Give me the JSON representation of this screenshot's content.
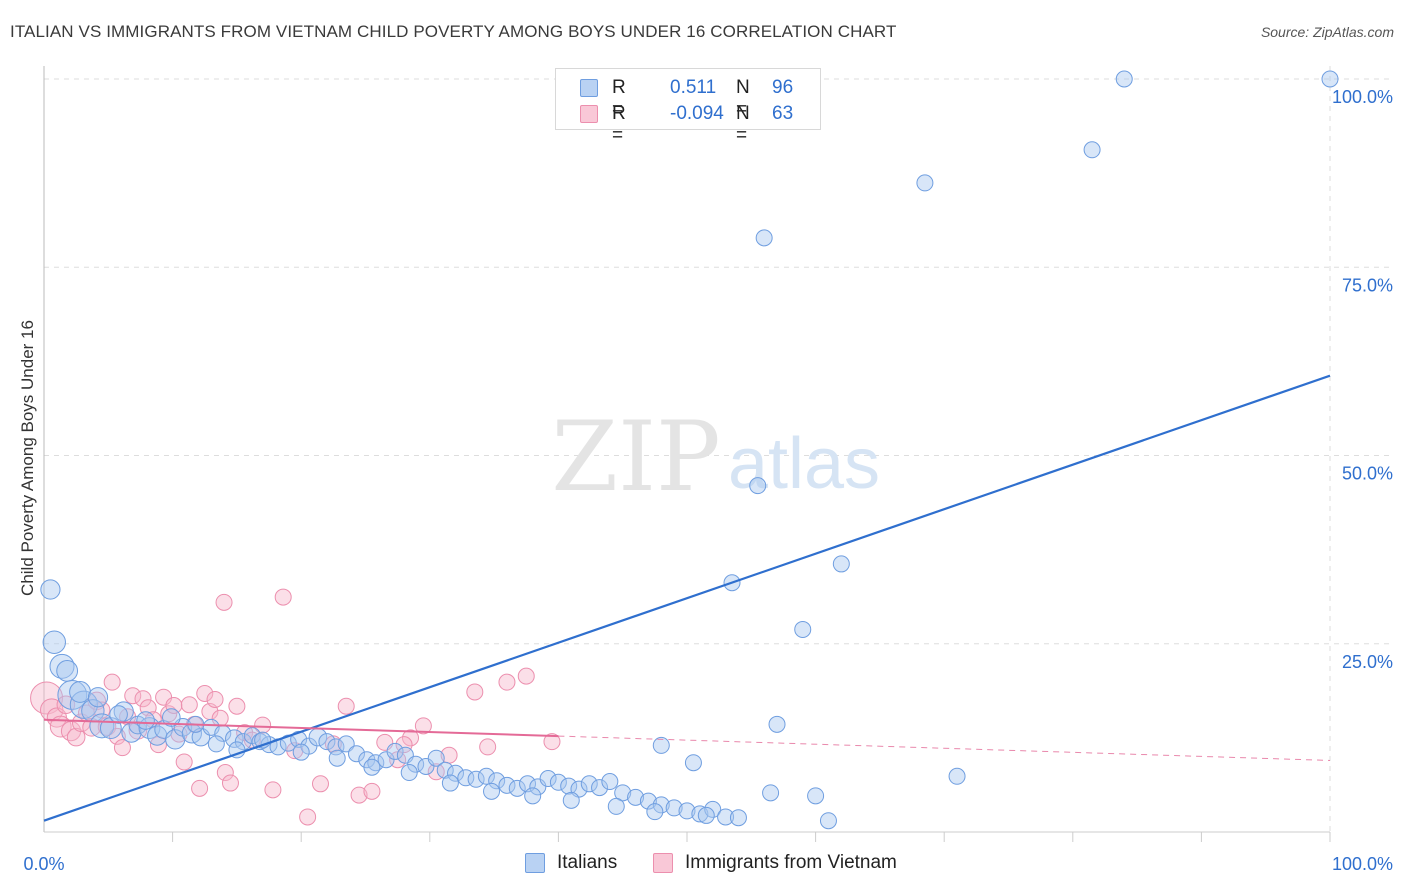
{
  "title": "ITALIAN VS IMMIGRANTS FROM VIETNAM CHILD POVERTY AMONG BOYS UNDER 16 CORRELATION CHART",
  "source": "Source: ZipAtlas.com",
  "colors": {
    "blue_fill": "#a9c7ef",
    "blue_stroke": "#6f9ee0",
    "blue_line": "#2f6fce",
    "pink_fill": "#f6b8cb",
    "pink_stroke": "#ec8fae",
    "pink_line": "#e46a97",
    "tick_text": "#2f6fce",
    "grid": "#dddddd"
  },
  "legend": {
    "rows": [
      {
        "series": "Italians",
        "r_label": "R =",
        "r_value": "0.511",
        "n_label": "N =",
        "n_value": "96"
      },
      {
        "series": "Immigrants from Vietnam",
        "r_label": "R =",
        "r_value": "-0.094",
        "n_label": "N =",
        "n_value": "63"
      }
    ],
    "bottom": [
      "Italians",
      "Immigrants from Vietnam"
    ]
  },
  "chart_data": {
    "type": "scatter",
    "title": "ITALIAN VS IMMIGRANTS FROM VIETNAM CHILD POVERTY AMONG BOYS UNDER 16 CORRELATION CHART",
    "xlabel": "",
    "ylabel": "Child Poverty Among Boys Under 16",
    "xlim": [
      0,
      100
    ],
    "ylim": [
      0,
      100
    ],
    "x_tick_labels": [
      "0.0%",
      "100.0%"
    ],
    "y_tick_labels": [
      {
        "value": 25,
        "label": "25.0%"
      },
      {
        "value": 50,
        "label": "50.0%"
      },
      {
        "value": 75,
        "label": "75.0%"
      },
      {
        "value": 100,
        "label": "100.0%"
      }
    ],
    "watermark": {
      "bold": "ZIP",
      "light": "atlas"
    },
    "series": [
      {
        "name": "Italians",
        "color": "#6f9ee0",
        "trend": {
          "x0": 0,
          "y0": 1.5,
          "x1": 100,
          "y1": 60.6,
          "dashed_from": null
        },
        "points": [
          [
            0.5,
            32.2,
            1.2
          ],
          [
            0.8,
            25.2,
            1.4
          ],
          [
            1.4,
            22.0,
            1.5
          ],
          [
            1.8,
            21.4,
            1.3
          ],
          [
            2.2,
            18.2,
            1.8
          ],
          [
            3.1,
            16.9,
            1.7
          ],
          [
            3.8,
            16.1,
            1.4
          ],
          [
            4.5,
            14.1,
            1.5
          ],
          [
            5.2,
            13.8,
            1.3
          ],
          [
            6.2,
            16.0,
            1.2
          ],
          [
            6.8,
            13.2,
            1.2
          ],
          [
            7.3,
            14.2,
            1.1
          ],
          [
            8.2,
            13.8,
            1.3
          ],
          [
            8.8,
            12.8,
            1.2
          ],
          [
            9.3,
            13.6,
            1.1
          ],
          [
            10.2,
            12.3,
            1.2
          ],
          [
            10.8,
            13.9,
            1.1
          ],
          [
            11.5,
            13.1,
            1.2
          ],
          [
            12.2,
            12.6,
            1.1
          ],
          [
            13.0,
            13.9,
            1.0
          ],
          [
            13.9,
            13.1,
            1.0
          ],
          [
            14.8,
            12.4,
            1.1
          ],
          [
            15.5,
            12.0,
            1.0
          ],
          [
            16.2,
            12.8,
            1.0
          ],
          [
            16.8,
            12.0,
            1.0
          ],
          [
            17.5,
            11.6,
            1.0
          ],
          [
            18.2,
            11.3,
            1.0
          ],
          [
            19.0,
            11.8,
            1.0
          ],
          [
            19.8,
            12.3,
            1.0
          ],
          [
            20.6,
            11.4,
            1.0
          ],
          [
            21.3,
            12.6,
            1.1
          ],
          [
            22.0,
            12.0,
            1.0
          ],
          [
            22.7,
            11.3,
            1.0
          ],
          [
            23.5,
            11.7,
            1.0
          ],
          [
            24.3,
            10.4,
            1.0
          ],
          [
            25.1,
            9.6,
            1.0
          ],
          [
            25.8,
            9.2,
            1.0
          ],
          [
            26.6,
            9.6,
            1.0
          ],
          [
            27.3,
            10.7,
            1.0
          ],
          [
            28.1,
            10.2,
            1.0
          ],
          [
            28.9,
            9.0,
            1.0
          ],
          [
            29.7,
            8.7,
            1.0
          ],
          [
            30.5,
            9.8,
            1.0
          ],
          [
            31.2,
            8.2,
            1.0
          ],
          [
            32.0,
            7.8,
            1.0
          ],
          [
            32.8,
            7.2,
            1.0
          ],
          [
            33.6,
            7.0,
            1.0
          ],
          [
            34.4,
            7.4,
            1.0
          ],
          [
            35.2,
            6.8,
            1.0
          ],
          [
            36.0,
            6.2,
            1.0
          ],
          [
            36.8,
            5.8,
            1.0
          ],
          [
            37.6,
            6.4,
            1.0
          ],
          [
            38.4,
            6.0,
            1.0
          ],
          [
            39.2,
            7.1,
            1.0
          ],
          [
            40.0,
            6.6,
            1.0
          ],
          [
            40.8,
            6.1,
            1.0
          ],
          [
            41.6,
            5.7,
            1.0
          ],
          [
            42.4,
            6.4,
            1.0
          ],
          [
            43.2,
            5.9,
            1.0
          ],
          [
            44.0,
            6.7,
            1.0
          ],
          [
            45.0,
            5.2,
            1.0
          ],
          [
            46.0,
            4.6,
            1.0
          ],
          [
            47.0,
            4.1,
            1.0
          ],
          [
            48.0,
            3.6,
            1.0
          ],
          [
            49.0,
            3.2,
            1.0
          ],
          [
            50.0,
            2.8,
            1.0
          ],
          [
            51.0,
            2.4,
            1.0
          ],
          [
            52.0,
            3.0,
            1.0
          ],
          [
            53.0,
            2.0,
            1.0
          ],
          [
            54.0,
            1.9,
            1.0
          ],
          [
            2.8,
            18.6,
            1.3
          ],
          [
            4.2,
            17.9,
            1.2
          ],
          [
            5.8,
            15.6,
            1.1
          ],
          [
            7.9,
            14.8,
            1.1
          ],
          [
            9.9,
            15.2,
            1.1
          ],
          [
            11.8,
            14.3,
            1.0
          ],
          [
            13.4,
            11.7,
            1.0
          ],
          [
            15.0,
            10.9,
            1.0
          ],
          [
            17.0,
            12.2,
            1.0
          ],
          [
            20.0,
            10.6,
            1.0
          ],
          [
            22.8,
            9.8,
            1.0
          ],
          [
            25.5,
            8.6,
            1.0
          ],
          [
            28.4,
            7.9,
            1.0
          ],
          [
            31.6,
            6.5,
            1.0
          ],
          [
            34.8,
            5.4,
            1.0
          ],
          [
            38.0,
            4.8,
            1.0
          ],
          [
            41.0,
            4.2,
            1.0
          ],
          [
            44.5,
            3.4,
            1.0
          ],
          [
            47.5,
            2.7,
            1.0
          ],
          [
            51.5,
            2.2,
            1.0
          ],
          [
            56.5,
            5.2,
            1.0
          ],
          [
            60.0,
            4.8,
            1.0
          ],
          [
            62.0,
            35.6,
            1.0
          ],
          [
            59.0,
            26.9,
            1.0
          ],
          [
            57.0,
            14.3,
            1.0
          ],
          [
            55.5,
            46.0,
            1.0
          ],
          [
            56.0,
            78.9,
            1.0
          ],
          [
            68.5,
            86.2,
            1.0
          ],
          [
            81.5,
            90.6,
            1.0
          ],
          [
            84.0,
            100.0,
            1.0
          ],
          [
            100.0,
            100.0,
            1.0
          ],
          [
            71.0,
            7.4,
            1.0
          ],
          [
            61.0,
            1.5,
            1.0
          ],
          [
            48.0,
            11.5,
            1.0
          ],
          [
            50.5,
            9.2,
            1.0
          ],
          [
            53.5,
            33.1,
            1.0
          ]
        ]
      },
      {
        "name": "Immigrants from Vietnam",
        "color": "#ec8fae",
        "trend": {
          "x0": 0,
          "y0": 14.9,
          "x1": 100,
          "y1": 9.5,
          "dashed_from": 40
        },
        "points": [
          [
            0.2,
            17.8,
            2.0
          ],
          [
            0.6,
            16.2,
            1.4
          ],
          [
            1.0,
            15.2,
            1.2
          ],
          [
            1.3,
            14.0,
            1.3
          ],
          [
            1.7,
            16.9,
            1.1
          ],
          [
            2.1,
            13.4,
            1.2
          ],
          [
            2.5,
            12.6,
            1.1
          ],
          [
            2.9,
            14.5,
            1.1
          ],
          [
            3.3,
            15.8,
            1.0
          ],
          [
            3.7,
            13.9,
            1.1
          ],
          [
            4.1,
            17.4,
            1.1
          ],
          [
            4.5,
            16.2,
            1.0
          ],
          [
            4.9,
            14.0,
            1.1
          ],
          [
            5.3,
            19.9,
            1.0
          ],
          [
            5.7,
            12.7,
            1.0
          ],
          [
            6.1,
            11.2,
            1.0
          ],
          [
            6.5,
            15.3,
            1.0
          ],
          [
            6.9,
            18.1,
            1.0
          ],
          [
            7.3,
            13.5,
            1.1
          ],
          [
            7.7,
            17.7,
            1.0
          ],
          [
            8.1,
            16.5,
            1.0
          ],
          [
            8.5,
            14.9,
            1.0
          ],
          [
            8.9,
            11.6,
            1.0
          ],
          [
            9.3,
            17.9,
            1.0
          ],
          [
            9.7,
            15.7,
            1.0
          ],
          [
            10.1,
            16.8,
            1.0
          ],
          [
            10.5,
            13.0,
            1.0
          ],
          [
            10.9,
            9.3,
            1.0
          ],
          [
            11.3,
            16.9,
            1.0
          ],
          [
            11.7,
            14.3,
            1.0
          ],
          [
            12.1,
            5.8,
            1.0
          ],
          [
            12.5,
            18.4,
            1.0
          ],
          [
            12.9,
            16.0,
            1.0
          ],
          [
            13.3,
            17.6,
            1.0
          ],
          [
            13.7,
            15.1,
            1.0
          ],
          [
            14.1,
            7.9,
            1.0
          ],
          [
            14.5,
            6.5,
            1.0
          ],
          [
            15.0,
            16.7,
            1.0
          ],
          [
            15.6,
            13.2,
            1.0
          ],
          [
            16.2,
            12.2,
            1.0
          ],
          [
            17.0,
            14.2,
            1.0
          ],
          [
            17.8,
            5.6,
            1.0
          ],
          [
            18.6,
            31.2,
            1.0
          ],
          [
            14.0,
            30.5,
            1.0
          ],
          [
            19.5,
            10.8,
            1.0
          ],
          [
            20.5,
            2.0,
            1.0
          ],
          [
            21.5,
            6.4,
            1.0
          ],
          [
            22.5,
            11.7,
            1.0
          ],
          [
            23.5,
            16.7,
            1.0
          ],
          [
            24.5,
            4.9,
            1.0
          ],
          [
            25.5,
            5.4,
            1.0
          ],
          [
            26.5,
            11.9,
            1.0
          ],
          [
            27.5,
            9.6,
            1.0
          ],
          [
            28.5,
            12.5,
            1.0
          ],
          [
            29.5,
            14.1,
            1.0
          ],
          [
            30.5,
            8.0,
            1.0
          ],
          [
            31.5,
            10.2,
            1.0
          ],
          [
            33.5,
            18.6,
            1.0
          ],
          [
            34.5,
            11.3,
            1.0
          ],
          [
            36.0,
            19.9,
            1.0
          ],
          [
            37.5,
            20.7,
            1.0
          ],
          [
            39.5,
            12.0,
            1.0
          ],
          [
            28.0,
            11.6,
            1.0
          ]
        ]
      }
    ]
  },
  "axis": {
    "ylabel": "Child Poverty Among Boys Under 16"
  }
}
